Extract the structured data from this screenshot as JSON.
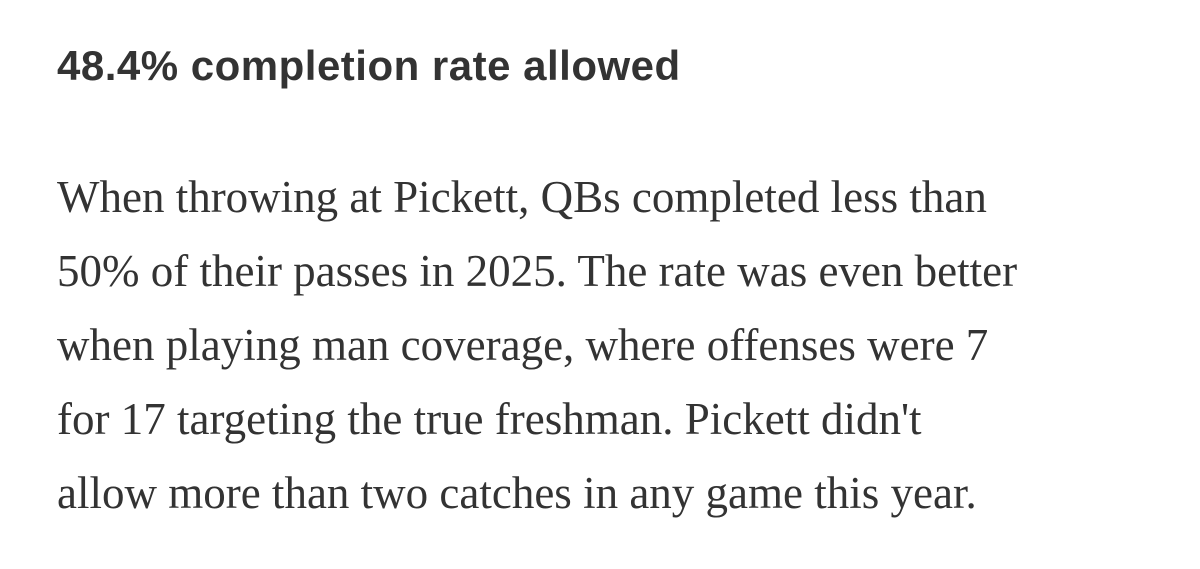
{
  "header": {
    "title": "48.4% completion rate allowed"
  },
  "body": {
    "lines": [
      "When throwing at Pickett, QBs completed less than",
      "50% of their passes in 2025. The rate was even better",
      "when playing man coverage, where offenses were 7",
      "for 17 targeting the true freshman. Pickett didn't",
      "allow more than two catches in any game this year."
    ]
  }
}
